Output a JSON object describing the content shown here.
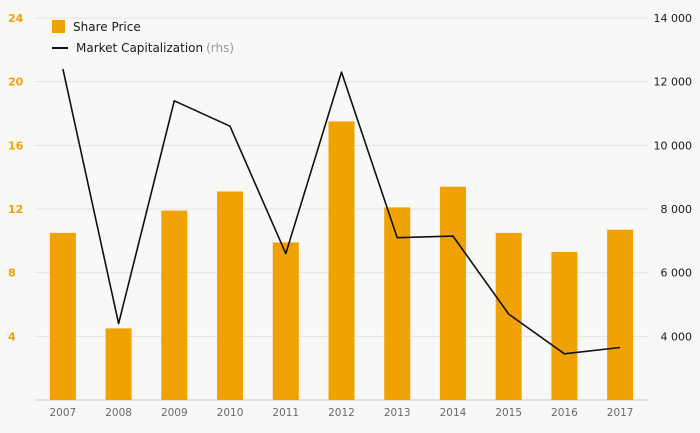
{
  "chart_data": {
    "type": "bar+line",
    "title": "",
    "categories": [
      "2007",
      "2008",
      "2009",
      "2010",
      "2011",
      "2012",
      "2013",
      "2014",
      "2015",
      "2016",
      "2017"
    ],
    "series": [
      {
        "name": "Share Price",
        "type": "bar",
        "axis": "left",
        "color": "#F0A202",
        "values": [
          10.5,
          4.5,
          11.9,
          13.1,
          9.9,
          17.5,
          12.1,
          13.4,
          10.5,
          9.3,
          10.7
        ]
      },
      {
        "name": "Market Capitalization",
        "axis_note": "(rhs)",
        "type": "line",
        "axis": "right",
        "color": "#111111",
        "values": [
          12400,
          4400,
          11400,
          10600,
          6600,
          12300,
          7100,
          7150,
          4700,
          3450,
          3650
        ]
      }
    ],
    "left_axis": {
      "min": 0,
      "max": 24,
      "ticks": [
        4,
        8,
        12,
        16,
        20,
        24
      ],
      "color": "#F0A202"
    },
    "right_axis": {
      "min": 2000,
      "max": 14000,
      "ticks": [
        4000,
        6000,
        8000,
        10000,
        12000,
        14000
      ],
      "color": "#1a1a1a"
    },
    "grid": true,
    "legend_position": "top-left",
    "background": "#f8f8f6",
    "gridline_color": "#e4e4e2",
    "baseline_color": "#c9c9c7",
    "x_label_color": "#6b6a66"
  }
}
